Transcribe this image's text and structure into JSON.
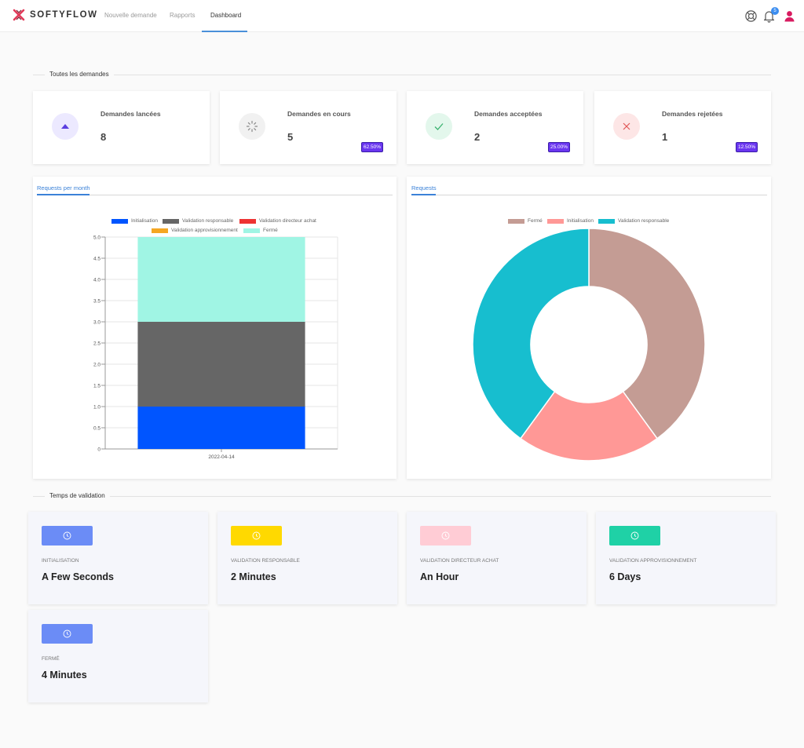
{
  "brand": {
    "name": "SOFTYFLOW"
  },
  "nav": [
    {
      "label": "Nouvelle demande",
      "active": false
    },
    {
      "label": "Rapports",
      "active": false
    },
    {
      "label": "Dashboard",
      "active": true
    }
  ],
  "header_icons": {
    "help": "lifebuoy-icon",
    "notifications": "bell-icon",
    "notification_count": "5",
    "profile": "user-icon"
  },
  "sections": {
    "requests": "Toutes les demandes",
    "validation_time": "Temps de validation"
  },
  "stats": [
    {
      "title": "Demandes lancées",
      "value": "8",
      "badge": "",
      "icon": "triangle-up-icon",
      "icon_bg": "#ece9ff",
      "icon_color": "#5b3fe0"
    },
    {
      "title": "Demandes en cours",
      "value": "5",
      "badge": "62.50%",
      "icon": "spinner-icon",
      "icon_bg": "#f1f1f1",
      "icon_color": "#888888"
    },
    {
      "title": "Demandes acceptées",
      "value": "2",
      "badge": "25.00%",
      "icon": "check-icon",
      "icon_bg": "#e3f7ec",
      "icon_color": "#3cb371"
    },
    {
      "title": "Demandes rejetées",
      "value": "1",
      "badge": "12.50%",
      "icon": "close-icon",
      "icon_bg": "#fde6e6",
      "icon_color": "#e05555"
    }
  ],
  "chart_data": [
    {
      "type": "bar",
      "tab": "Requests per month",
      "stacked": true,
      "categories": [
        "2022-04-14"
      ],
      "series": [
        {
          "name": "Initialisation",
          "values": [
            1
          ],
          "color": "#0055ff"
        },
        {
          "name": "Validation responsable",
          "values": [
            2
          ],
          "color": "#666666"
        },
        {
          "name": "Validation directeur achat",
          "values": [
            0
          ],
          "color": "#ee3333"
        },
        {
          "name": "Validation approvisionnement",
          "values": [
            0
          ],
          "color": "#f5a623"
        },
        {
          "name": "Fermé",
          "values": [
            2
          ],
          "color": "#a0f5e4"
        }
      ],
      "ylim": [
        0,
        5
      ],
      "yticks": [
        "0",
        "0.5",
        "1.0",
        "1.5",
        "2.0",
        "2.5",
        "3.0",
        "3.5",
        "4.0",
        "4.5",
        "5.0"
      ],
      "grid": true,
      "legend": "top"
    },
    {
      "type": "pie",
      "donut": true,
      "tab": "Requests",
      "slices": [
        {
          "name": "Fermé",
          "value": 2,
          "color": "#c49c94"
        },
        {
          "name": "Initialisation",
          "value": 1,
          "color": "#ff9896"
        },
        {
          "name": "Validation responsable",
          "value": 2,
          "color": "#17becf"
        }
      ],
      "legend": "top"
    }
  ],
  "validation_times": [
    {
      "label": "Initialisation",
      "value": "A Few Seconds",
      "color": "#6b8cf6"
    },
    {
      "label": "Validation responsable",
      "value": "2 Minutes",
      "color": "#ffd900"
    },
    {
      "label": "Validation directeur achat",
      "value": "An Hour",
      "color": "#ffccd5"
    },
    {
      "label": "Validation approvisionnement",
      "value": "6 Days",
      "color": "#1fd1a6"
    },
    {
      "label": "Fermé",
      "value": "4 Minutes",
      "color": "#6b8cf6"
    }
  ]
}
